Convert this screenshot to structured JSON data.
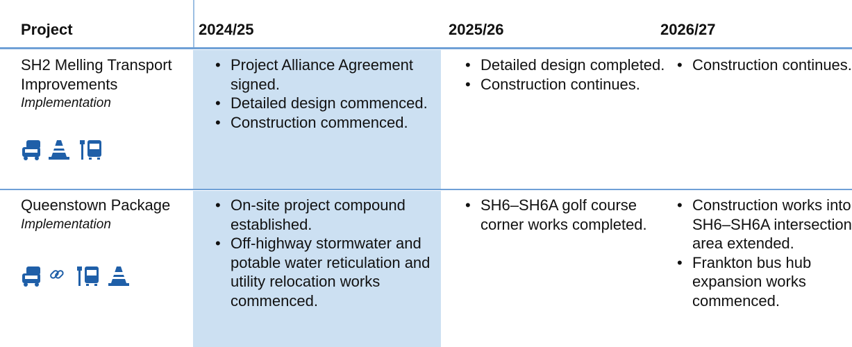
{
  "header": {
    "columns": [
      "Project",
      "2024/25",
      "2025/26",
      "2026/27"
    ]
  },
  "rows": [
    {
      "project": "SH2 Melling Transport Improvements",
      "status": "Implementation",
      "cells": [
        [
          "Project Alliance Agreement signed.",
          "Detailed design commenced.",
          "Construction commenced."
        ],
        [
          "Detailed design completed.",
          "Construction continues."
        ],
        [
          "Construction continues."
        ]
      ]
    },
    {
      "project": "Queenstown Package",
      "status": "Implementation",
      "cells": [
        [
          "On-site project compound established.",
          "Off-highway stormwater and potable water reticulation and utility relocation works commenced."
        ],
        [
          "SH6–SH6A golf course corner works completed."
        ],
        [
          "Construction works into SH6–SH6A intersection area extended.",
          "Frankton bus hub expansion works commenced."
        ]
      ]
    }
  ]
}
